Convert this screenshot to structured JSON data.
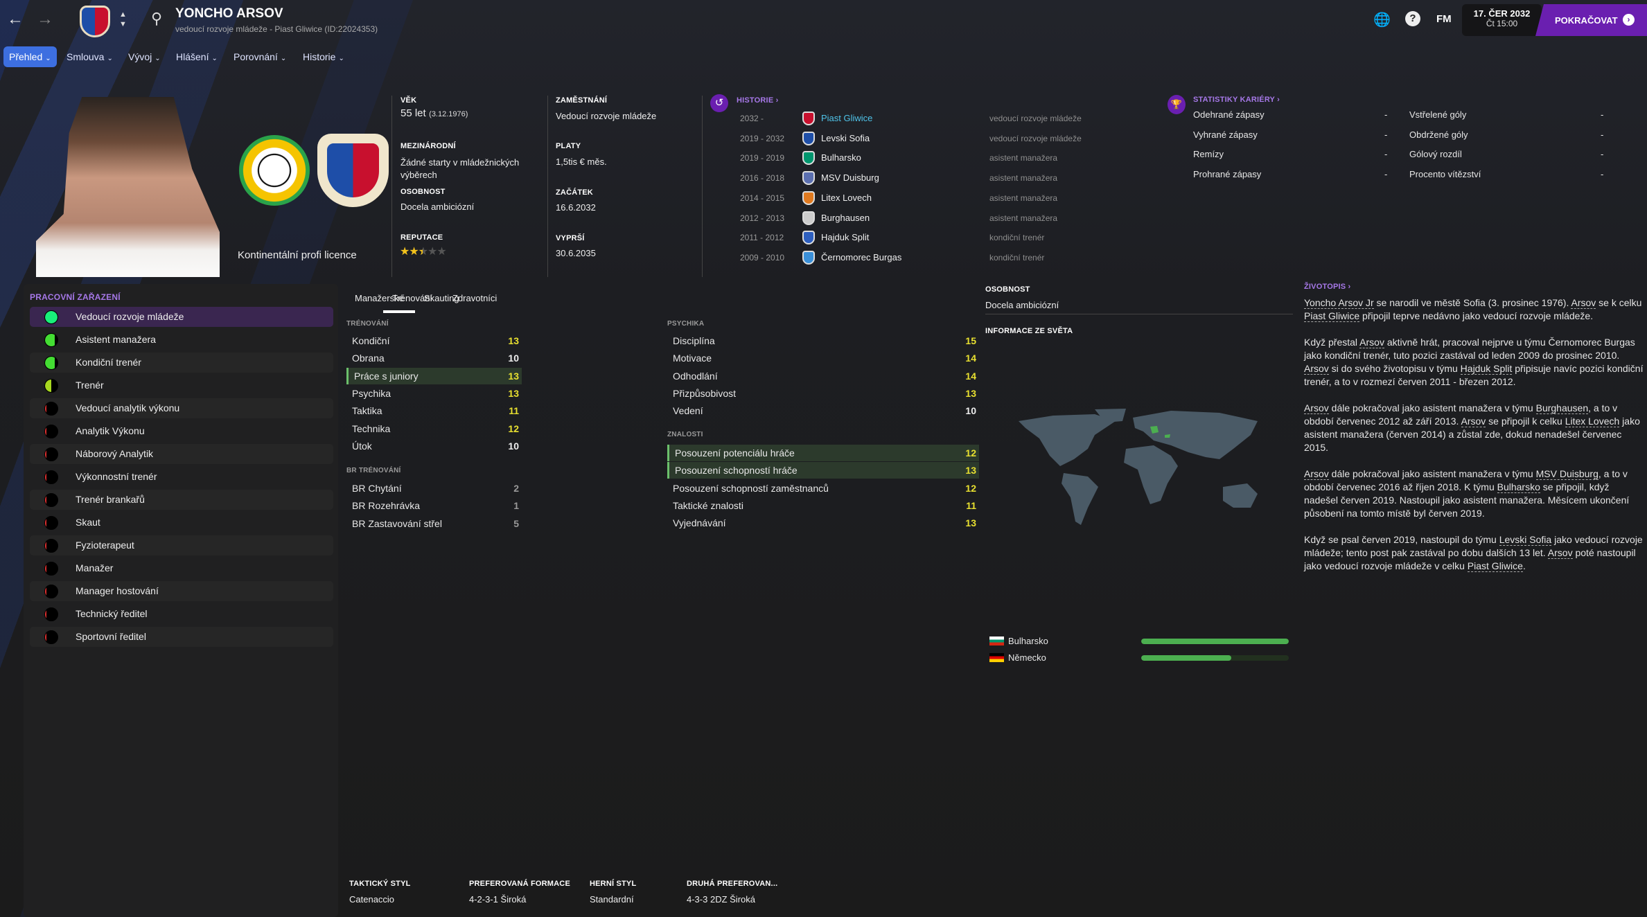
{
  "topbar": {
    "name": "YONCHO ARSOV",
    "subtitle": "vedoucí rozvoje mládeže - Piast Gliwice (ID:22024353)",
    "fm": "FM",
    "date": "17. ČER 2032",
    "time": "Čt 15:00",
    "continue": "POKRAČOVAT"
  },
  "nav": [
    {
      "label": "Přehled"
    },
    {
      "label": "Smlouva"
    },
    {
      "label": "Vývoj"
    },
    {
      "label": "Hlášení"
    },
    {
      "label": "Porovnání"
    },
    {
      "label": "Historie"
    }
  ],
  "profile": {
    "licence": "Kontinentální profi licence",
    "age_label": "VĚK",
    "age": "55 let",
    "dob": "(3.12.1976)",
    "intl_label": "MEZINÁRODNÍ",
    "intl": "Žádné starty v mládežnických výběrech",
    "pers_label": "OSOBNOST",
    "pers": "Docela ambiciózní",
    "rep_label": "REPUTACE",
    "reputation_stars": 2.5,
    "reputation_max": 5,
    "job_label": "ZAMĚSTNÁNÍ",
    "job": "Vedoucí rozvoje mládeže",
    "wage_label": "PLATY",
    "wage": "1,5tis € měs.",
    "start_label": "ZAČÁTEK",
    "start": "16.6.2032",
    "end_label": "VYPRŠÍ",
    "end": "30.6.2035"
  },
  "history": {
    "title": "HISTORIE ›",
    "rows": [
      {
        "years": "2032 -",
        "club": "Piast Gliwice",
        "role": "vedoucí rozvoje mládeže",
        "color": "#c8102e"
      },
      {
        "years": "2019 - 2032",
        "club": "Levski Sofia",
        "role": "vedoucí rozvoje mládeže",
        "color": "#1f4fa8"
      },
      {
        "years": "2019 - 2019",
        "club": "Bulharsko",
        "role": "asistent manažera",
        "color": "#00966e"
      },
      {
        "years": "2016 - 2018",
        "club": "MSV Duisburg",
        "role": "asistent manažera",
        "color": "#5b6fb0"
      },
      {
        "years": "2014 - 2015",
        "club": "Litex Lovech",
        "role": "asistent manažera",
        "color": "#e07a20"
      },
      {
        "years": "2012 - 2013",
        "club": "Burghausen",
        "role": "asistent manažera",
        "color": "#cccccc"
      },
      {
        "years": "2011 - 2012",
        "club": "Hajduk Split",
        "role": "kondiční trenér",
        "color": "#2e5fbf"
      },
      {
        "years": "2009 - 2010",
        "club": "Černomorec Burgas",
        "role": "kondiční trenér",
        "color": "#3a8fd8"
      }
    ]
  },
  "career": {
    "title": "STATISTIKY KARIÉRY ›",
    "left": [
      {
        "label": "Odehrané zápasy",
        "value": "-"
      },
      {
        "label": "Vyhrané zápasy",
        "value": "-"
      },
      {
        "label": "Remízy",
        "value": "-"
      },
      {
        "label": "Prohrané zápasy",
        "value": "-"
      }
    ],
    "right": [
      {
        "label": "Vstřelené góly",
        "value": "-"
      },
      {
        "label": "Obdržené góly",
        "value": "-"
      },
      {
        "label": "Gólový rozdíl",
        "value": "-"
      },
      {
        "label": "Procento vítězství",
        "value": "-"
      }
    ]
  },
  "roles": {
    "title": "PRACOVNÍ ZAŘAZENÍ",
    "items": [
      {
        "label": "Vedoucí rozvoje mládeže",
        "suit": 1.0,
        "color": "#19f07a"
      },
      {
        "label": "Asistent manažera",
        "suit": 0.8,
        "color": "#44dd33"
      },
      {
        "label": "Kondiční trenér",
        "suit": 0.8,
        "color": "#44dd33"
      },
      {
        "label": "Trenér",
        "suit": 0.5,
        "color": "#a8d820"
      },
      {
        "label": "Vedoucí analytik výkonu",
        "suit": 0.1,
        "color": "#e03030"
      },
      {
        "label": "Analytik Výkonu",
        "suit": 0.1,
        "color": "#e03030"
      },
      {
        "label": "Náborový Analytik",
        "suit": 0.1,
        "color": "#e03030"
      },
      {
        "label": "Výkonnostní trenér",
        "suit": 0.1,
        "color": "#e03030"
      },
      {
        "label": "Trenér brankařů",
        "suit": 0.1,
        "color": "#e03030"
      },
      {
        "label": "Skaut",
        "suit": 0.1,
        "color": "#e03030"
      },
      {
        "label": "Fyzioterapeut",
        "suit": 0.1,
        "color": "#e03030"
      },
      {
        "label": "Manažer",
        "suit": 0.1,
        "color": "#e03030"
      },
      {
        "label": "Manager hostování",
        "suit": 0.1,
        "color": "#e03030"
      },
      {
        "label": "Technický ředitel",
        "suit": 0.1,
        "color": "#e03030"
      },
      {
        "label": "Sportovní ředitel",
        "suit": 0.1,
        "color": "#e03030"
      }
    ]
  },
  "attr_tabs": [
    "Manažerské",
    "Trénování",
    "Skauting",
    "Zdravotníci"
  ],
  "training": {
    "title": "TRÉNOVÁNÍ",
    "rows": [
      {
        "n": "Kondiční",
        "v": 13
      },
      {
        "n": "Obrana",
        "v": 10
      },
      {
        "n": "Práce s juniory",
        "v": 13,
        "hl": true
      },
      {
        "n": "Psychika",
        "v": 13
      },
      {
        "n": "Taktika",
        "v": 11
      },
      {
        "n": "Technika",
        "v": 12
      },
      {
        "n": "Útok",
        "v": 10
      }
    ]
  },
  "gk": {
    "title": "BR TRÉNOVÁNÍ",
    "rows": [
      {
        "n": "BR Chytání",
        "v": 2
      },
      {
        "n": "BR Rozehrávka",
        "v": 1
      },
      {
        "n": "BR Zastavování střel",
        "v": 5
      }
    ]
  },
  "mental": {
    "title": "PSYCHIKA",
    "rows": [
      {
        "n": "Disciplína",
        "v": 15
      },
      {
        "n": "Motivace",
        "v": 14
      },
      {
        "n": "Odhodlání",
        "v": 14
      },
      {
        "n": "Přizpůsobivost",
        "v": 13
      },
      {
        "n": "Vedení",
        "v": 10
      }
    ]
  },
  "knowledge": {
    "title": "ZNALOSTI",
    "rows": [
      {
        "n": "Posouzení potenciálu hráče",
        "v": 12,
        "hl": true
      },
      {
        "n": "Posouzení schopností hráče",
        "v": 13,
        "hl": true
      },
      {
        "n": "Posouzení schopností zaměstnanců",
        "v": 12
      },
      {
        "n": "Taktické znalosti",
        "v": 11
      },
      {
        "n": "Vyjednávání",
        "v": 13
      }
    ]
  },
  "tactics": [
    {
      "label": "TAKTICKÝ STYL",
      "value": "Catenaccio"
    },
    {
      "label": "PREFEROVANÁ FORMACE",
      "value": "4-2-3-1 Široká"
    },
    {
      "label": "HERNÍ STYL",
      "value": "Standardní"
    },
    {
      "label": "DRUHÁ PREFEROVAN...",
      "value": "4-3-3 2DZ Široká"
    }
  ],
  "world": {
    "pers_label": "OSOBNOST",
    "pers": "Docela ambiciózní",
    "title": "INFORMACE ZE SVĚTA",
    "countries": [
      {
        "name": "Bulharsko",
        "level": 1.0
      },
      {
        "name": "Německo",
        "level": 0.61
      }
    ]
  },
  "bio": {
    "title": "ŽIVOTOPIS ›",
    "paragraphs": [
      [
        [
          "Yoncho Arsov Jr",
          1
        ],
        [
          " se narodil ve městě Sofia (3. prosinec 1976). ",
          0
        ],
        [
          "Arsov",
          1
        ],
        [
          " se k celku ",
          0
        ],
        [
          "Piast Gliwice",
          1
        ],
        [
          " připojil teprve nedávno jako vedoucí rozvoje mládeže.",
          0
        ]
      ],
      [
        [
          "Když přestal ",
          0
        ],
        [
          "Arsov",
          1
        ],
        [
          " aktivně hrát, pracoval nejprve u týmu Černomorec Burgas jako kondiční trenér, tuto pozici zastával od leden 2009 do prosinec 2010. ",
          0
        ],
        [
          "Arsov",
          1
        ],
        [
          " si do svého životopisu v týmu ",
          0
        ],
        [
          "Hajduk Split",
          1
        ],
        [
          " připisuje navíc pozici kondiční trenér, a to v rozmezí červen 2011 - březen 2012.",
          0
        ]
      ],
      [
        [
          "Arsov",
          1
        ],
        [
          " dále pokračoval jako asistent manažera v týmu ",
          0
        ],
        [
          "Burghausen",
          1
        ],
        [
          ", a to v období červenec 2012 až září 2013. ",
          0
        ],
        [
          "Arsov",
          1
        ],
        [
          " se připojil k celku ",
          0
        ],
        [
          "Litex Lovech",
          1
        ],
        [
          " jako asistent manažera (červen 2014) a zůstal zde, dokud nenadešel červenec 2015.",
          0
        ]
      ],
      [
        [
          "Arsov",
          1
        ],
        [
          " dále pokračoval jako asistent manažera v týmu ",
          0
        ],
        [
          "MSV Duisburg",
          1
        ],
        [
          ", a to v období červenec 2016 až říjen 2018. K týmu ",
          0
        ],
        [
          "Bulharsko",
          1
        ],
        [
          " se připojil, když nadešel červen 2019. Nastoupil jako asistent manažera. Měsícem ukončení působení na tomto místě byl červen 2019.",
          0
        ]
      ],
      [
        [
          "Když se psal červen 2019, nastoupil do týmu ",
          0
        ],
        [
          "Levski Sofia",
          1
        ],
        [
          " jako vedoucí rozvoje mládeže; tento post pak zastával po dobu dalších 13 let. ",
          0
        ],
        [
          "Arsov",
          1
        ],
        [
          " poté nastoupil jako vedoucí rozvoje mládeže v celku ",
          0
        ],
        [
          "Piast Gliwice",
          1
        ],
        [
          ".",
          0
        ]
      ]
    ]
  },
  "colors": {
    "accent": "#6a1fb0",
    "nav_active": "#3d6fe0",
    "value_yellow": "#e8e030",
    "bar_green": "#4caf50"
  }
}
